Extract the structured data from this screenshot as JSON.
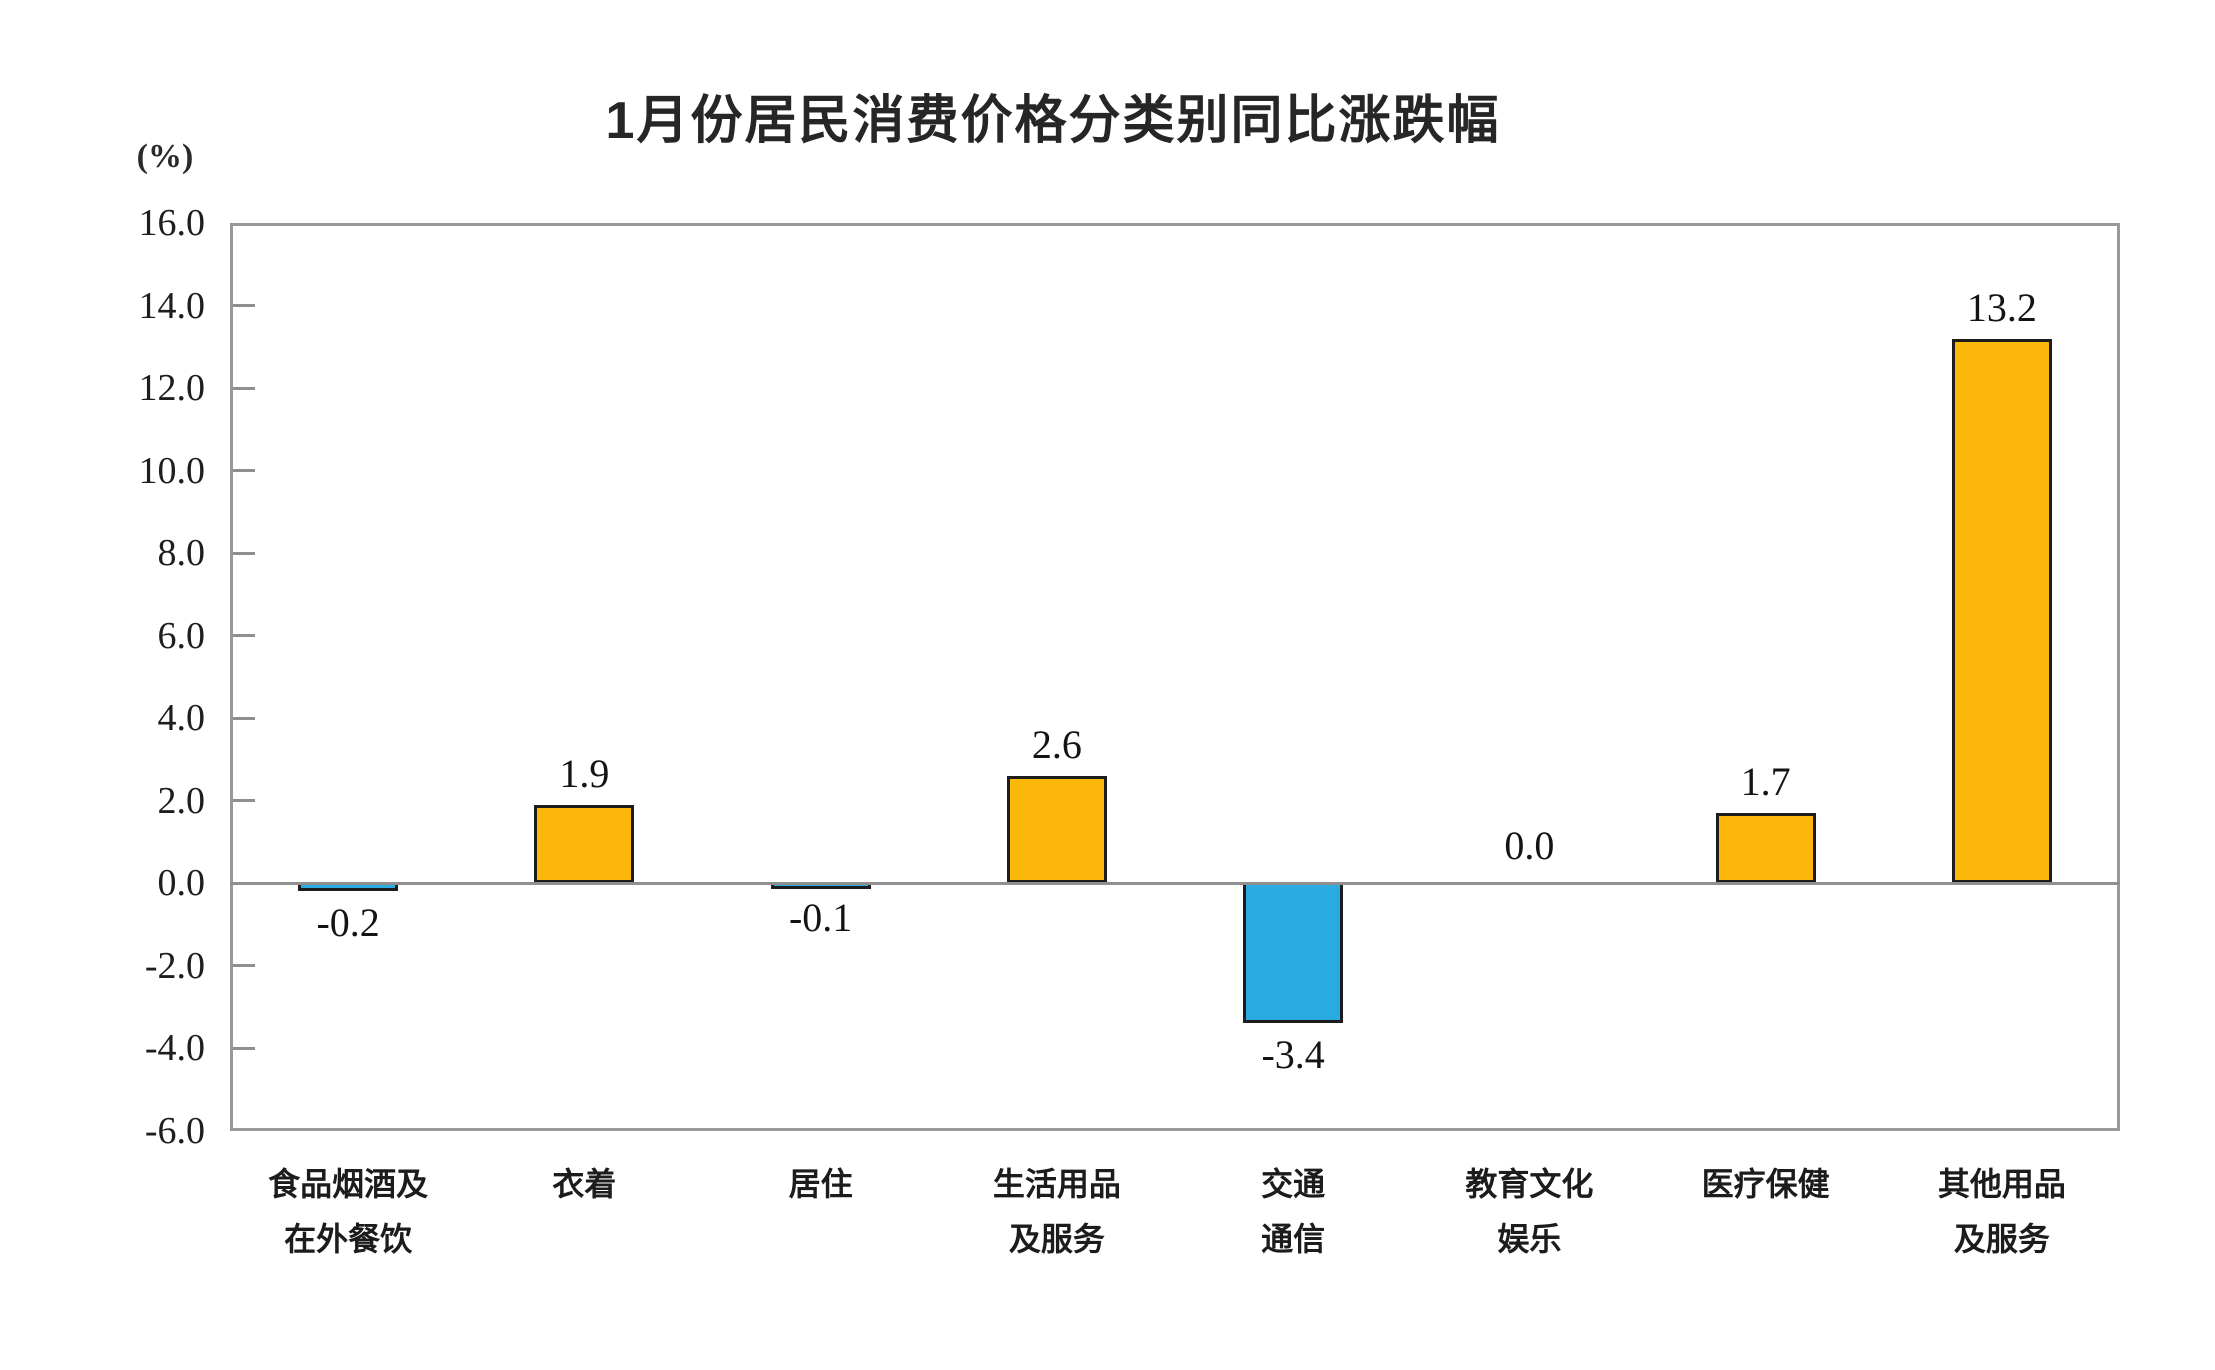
{
  "chart_data": {
    "type": "bar",
    "title": "1月份居民消费价格分类别同比涨跌幅",
    "unit_label": "(%)",
    "categories": [
      "食品烟酒及\n在外餐饮",
      "衣着",
      "居住",
      "生活用品\n及服务",
      "交通\n通信",
      "教育文化\n娱乐",
      "医疗保健",
      "其他用品\n及服务"
    ],
    "values": [
      -0.2,
      1.9,
      -0.1,
      2.6,
      -3.4,
      0.0,
      1.7,
      13.2
    ],
    "value_labels": [
      "-0.2",
      "1.9",
      "-0.1",
      "2.6",
      "-3.4",
      "0.0",
      "1.7",
      "13.2"
    ],
    "xlabel": "",
    "ylabel": "(%)",
    "ylim": [
      -6.0,
      16.0
    ],
    "y_tick_step": 2.0,
    "y_tick_labels": [
      "16.0",
      "14.0",
      "12.0",
      "10.0",
      "8.0",
      "6.0",
      "4.0",
      "2.0",
      "0.0",
      "-2.0",
      "-4.0",
      "-6.0"
    ],
    "grid": false,
    "legend": "none",
    "colors": {
      "positive_bar": "#FCB80A",
      "negative_bar": "#29ABE2",
      "bar_outline": "#1C1C1C",
      "axis": "#999999",
      "text": "#1E1E1E"
    }
  }
}
